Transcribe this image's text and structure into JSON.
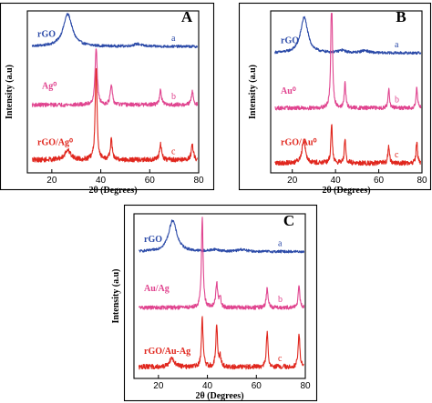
{
  "chart_data": [
    {
      "type": "line",
      "panel_label": "A",
      "xlabel": "2θ (Degrees)",
      "ylabel": "Intensity (a.u)",
      "xlim": [
        10,
        80
      ],
      "x_ticks": [
        20,
        40,
        60,
        80
      ],
      "y_ticks": "none",
      "grid": false,
      "colors": {
        "a": "#2b4aa8",
        "b": "#e0448f",
        "c": "#e0261d"
      },
      "series": [
        {
          "name": "rGO",
          "curve_letter": "a",
          "color": "#2b4aa8",
          "offset": 0.78,
          "noise": 0.008,
          "peaks": [
            [
              26.5,
              0.2,
              2.2
            ],
            [
              55,
              0.015,
              2
            ]
          ],
          "label_x": 11,
          "label_dy": 0.06
        },
        {
          "name": "Ag⁰",
          "curve_letter": "b",
          "color": "#e0448f",
          "offset": 0.42,
          "noise": 0.012,
          "peaks": [
            [
              38.1,
              0.36,
              0.5
            ],
            [
              44.3,
              0.12,
              0.5
            ],
            [
              64.4,
              0.09,
              0.5
            ],
            [
              77.4,
              0.08,
              0.5
            ]
          ],
          "label_x": 16,
          "label_dy": 0.1
        },
        {
          "name": "rGO/Ag⁰",
          "curve_letter": "c",
          "color": "#e0261d",
          "offset": 0.08,
          "noise": 0.015,
          "peaks": [
            [
              26.5,
              0.06,
              1.5
            ],
            [
              38.1,
              0.56,
              0.45
            ],
            [
              44.3,
              0.12,
              0.5
            ],
            [
              64.4,
              0.1,
              0.5
            ],
            [
              77.4,
              0.09,
              0.5
            ]
          ],
          "label_x": 11,
          "label_dy": 0.09
        }
      ]
    },
    {
      "type": "line",
      "panel_label": "B",
      "xlabel": "2θ (Degrees)",
      "ylabel": "Intensity (a.u)",
      "xlim": [
        10,
        80
      ],
      "x_ticks": [
        20,
        40,
        60,
        80
      ],
      "y_ticks": "none",
      "grid": false,
      "colors": {
        "a": "#2b4aa8",
        "b": "#e0448f",
        "c": "#e0261d"
      },
      "series": [
        {
          "name": "rGO",
          "curve_letter": "a",
          "color": "#2b4aa8",
          "offset": 0.74,
          "noise": 0.008,
          "peaks": [
            [
              25.5,
              0.22,
              2.0
            ],
            [
              43,
              0.015,
              2
            ],
            [
              53.5,
              0.015,
              2
            ]
          ],
          "label_x": 11,
          "label_dy": 0.06
        },
        {
          "name": "Au⁰",
          "curve_letter": "b",
          "color": "#e0448f",
          "offset": 0.4,
          "noise": 0.012,
          "peaks": [
            [
              38.2,
              0.8,
              0.4
            ],
            [
              44.4,
              0.16,
              0.4
            ],
            [
              64.6,
              0.12,
              0.4
            ],
            [
              77.6,
              0.13,
              0.4
            ]
          ],
          "label_x": 11,
          "label_dy": 0.09
        },
        {
          "name": "rGO/Au⁰",
          "curve_letter": "c",
          "color": "#e0261d",
          "offset": 0.06,
          "noise": 0.015,
          "peaks": [
            [
              25.3,
              0.14,
              1.0
            ],
            [
              38.2,
              0.25,
              0.4
            ],
            [
              44.4,
              0.16,
              0.4
            ],
            [
              64.6,
              0.11,
              0.4
            ],
            [
              77.6,
              0.13,
              0.4
            ]
          ],
          "label_x": 11,
          "label_dy": 0.11
        }
      ]
    },
    {
      "type": "line",
      "panel_label": "C",
      "xlabel": "2θ (Degrees)",
      "ylabel": "Intensity (a.u)",
      "xlim": [
        10,
        80
      ],
      "x_ticks": [
        20,
        40,
        60,
        80
      ],
      "y_ticks": "none",
      "grid": false,
      "colors": {
        "a": "#2b4aa8",
        "b": "#e0448f",
        "c": "#e0261d"
      },
      "series": [
        {
          "name": "rGO",
          "curve_letter": "a",
          "color": "#2b4aa8",
          "offset": 0.77,
          "noise": 0.008,
          "peaks": [
            [
              25.8,
              0.19,
              2.0
            ],
            [
              43,
              0.012,
              2
            ],
            [
              54,
              0.012,
              2
            ]
          ],
          "label_x": 11,
          "label_dy": 0.06
        },
        {
          "name": "Au/Ag",
          "curve_letter": "b",
          "color": "#e0448f",
          "offset": 0.43,
          "noise": 0.012,
          "peaks": [
            [
              37.9,
              0.55,
              0.4
            ],
            [
              43.8,
              0.15,
              0.45
            ],
            [
              45.2,
              0.06,
              0.4
            ],
            [
              64.4,
              0.12,
              0.4
            ],
            [
              77.4,
              0.13,
              0.4
            ]
          ],
          "label_x": 11,
          "label_dy": 0.1
        },
        {
          "name": "rGO/Au-Ag",
          "curve_letter": "c",
          "color": "#e0261d",
          "offset": 0.07,
          "noise": 0.015,
          "peaks": [
            [
              25.5,
              0.05,
              1.2
            ],
            [
              37.9,
              0.3,
              0.4
            ],
            [
              43.8,
              0.26,
              0.4
            ],
            [
              45.2,
              0.06,
              0.4
            ],
            [
              64.4,
              0.21,
              0.4
            ],
            [
              77.4,
              0.21,
              0.4
            ]
          ],
          "label_x": 11,
          "label_dy": 0.08
        }
      ]
    }
  ]
}
